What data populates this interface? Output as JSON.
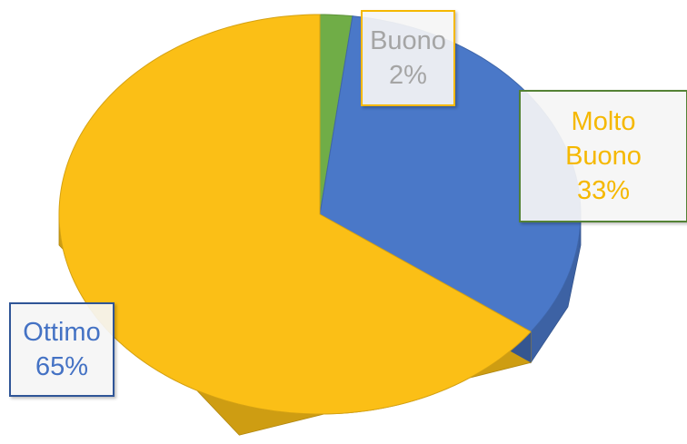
{
  "chart_data": {
    "type": "pie",
    "categories": [
      "Buono",
      "Molto Buono",
      "Ottimo"
    ],
    "values": [
      2,
      33,
      65
    ],
    "value_labels": [
      "2%",
      "33%",
      "65%"
    ],
    "colors": [
      "#70ad47",
      "#4a78c8",
      "#fbbf16"
    ]
  }
}
